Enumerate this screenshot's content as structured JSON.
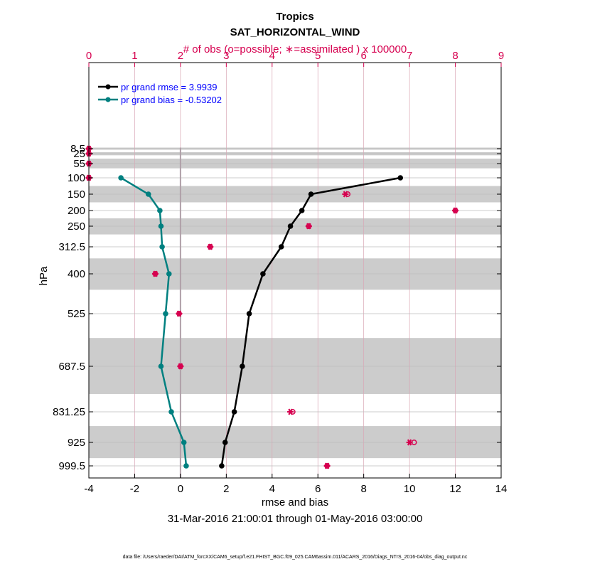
{
  "chart_data": {
    "type": "line",
    "title": "Tropics",
    "subtitle": "SAT_HORIZONTAL_WIND",
    "top_axis_label": "# of obs (o=possible; ∗=assimilated ) x 100000",
    "xlabel": "rmse and bias",
    "ylabel": "hPa",
    "date_range": "31-Mar-2016 21:00:01 through 01-May-2016 03:00:00",
    "footer": "data file: /Users/raeder/DAI/ATM_forcXX/CAM6_setup/f.e21.FHIST_BGC.f09_025.CAM6assim.011/ACARS_2016/Diags_NTrS_2016-04/obs_diag_output.nc",
    "xlim": [
      -4,
      14
    ],
    "x_ticks": [
      "-4",
      "-2",
      "0",
      "2",
      "4",
      "6",
      "8",
      "10",
      "12",
      "14"
    ],
    "top_xlim": [
      0,
      9
    ],
    "top_ticks": [
      "0",
      "1",
      "2",
      "3",
      "4",
      "5",
      "6",
      "7",
      "8",
      "9"
    ],
    "levels": [
      8.5,
      25,
      55,
      100,
      150,
      200,
      250,
      312.5,
      400,
      525,
      687.5,
      831.25,
      925,
      999.5
    ],
    "level_labels": [
      "8.5",
      "25",
      "55",
      "100",
      "150",
      "200",
      "250",
      "312.5",
      "400",
      "525",
      "687.5",
      "831.25",
      "925",
      "999.5"
    ],
    "series": [
      {
        "name": "pr grand rmse = 3.9939",
        "color": "#000000",
        "levels": [
          100,
          150,
          200,
          250,
          312.5,
          400,
          525,
          687.5,
          831.25,
          925,
          999.5
        ],
        "values": [
          9.6,
          5.7,
          5.3,
          4.8,
          4.4,
          3.6,
          3.0,
          2.7,
          2.35,
          1.95,
          1.8
        ]
      },
      {
        "name": "pr grand bias = -0.53202",
        "color": "#008080",
        "levels": [
          100,
          150,
          200,
          250,
          312.5,
          400,
          525,
          687.5,
          831.25,
          925,
          999.5
        ],
        "values": [
          -2.6,
          -1.4,
          -0.9,
          -0.85,
          -0.8,
          -0.5,
          -0.65,
          -0.85,
          -0.4,
          0.15,
          0.25
        ]
      }
    ],
    "obs_counts": {
      "color": "#d6004f",
      "levels": [
        8.5,
        25,
        55,
        100,
        150,
        200,
        250,
        312.5,
        400,
        525,
        687.5,
        831.25,
        925,
        999.5
      ],
      "possible": [
        0,
        0,
        0,
        0,
        5.65,
        8.0,
        4.8,
        2.65,
        1.45,
        1.97,
        2.0,
        4.45,
        7.1,
        5.2
      ],
      "assimilated": [
        0,
        0,
        0,
        0,
        5.6,
        8.0,
        4.8,
        2.65,
        1.45,
        1.97,
        2.0,
        4.4,
        7.0,
        5.2
      ]
    },
    "shaded_bands": [
      [
        5,
        12
      ],
      [
        20,
        30
      ],
      [
        40,
        70
      ],
      [
        125,
        175
      ],
      [
        225,
        275
      ],
      [
        350,
        450
      ],
      [
        600,
        775
      ],
      [
        875,
        975
      ]
    ],
    "legend_position": "top-left",
    "grid": true
  }
}
